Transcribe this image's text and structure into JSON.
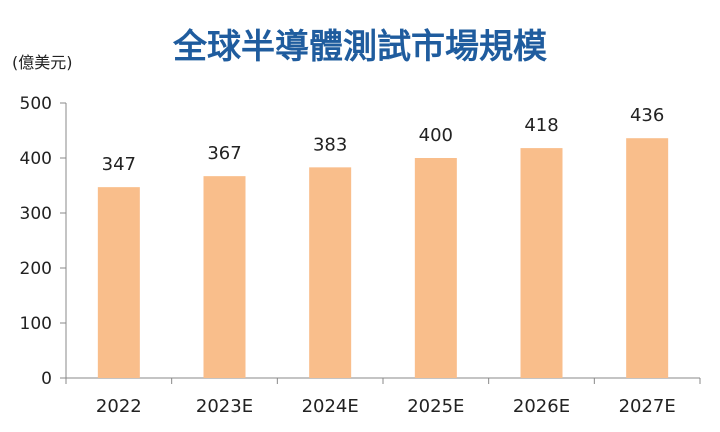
{
  "chart_data": {
    "type": "bar",
    "title": "全球半導體測試市場規模",
    "unit_label": "(億美元)",
    "categories": [
      "2022",
      "2023E",
      "2024E",
      "2025E",
      "2026E",
      "2027E"
    ],
    "values": [
      347,
      367,
      383,
      400,
      418,
      436
    ],
    "data_labels": [
      "347",
      "367",
      "383",
      "400",
      "418",
      "436"
    ],
    "ylim": [
      0,
      500
    ],
    "yticks": [
      "0",
      "100",
      "200",
      "300",
      "400",
      "500"
    ],
    "legend": "none",
    "grid": false,
    "colors": {
      "bar": "#F9BE8B",
      "title": "#1F5C9E",
      "text": "#222222",
      "axis": "#888888"
    }
  }
}
